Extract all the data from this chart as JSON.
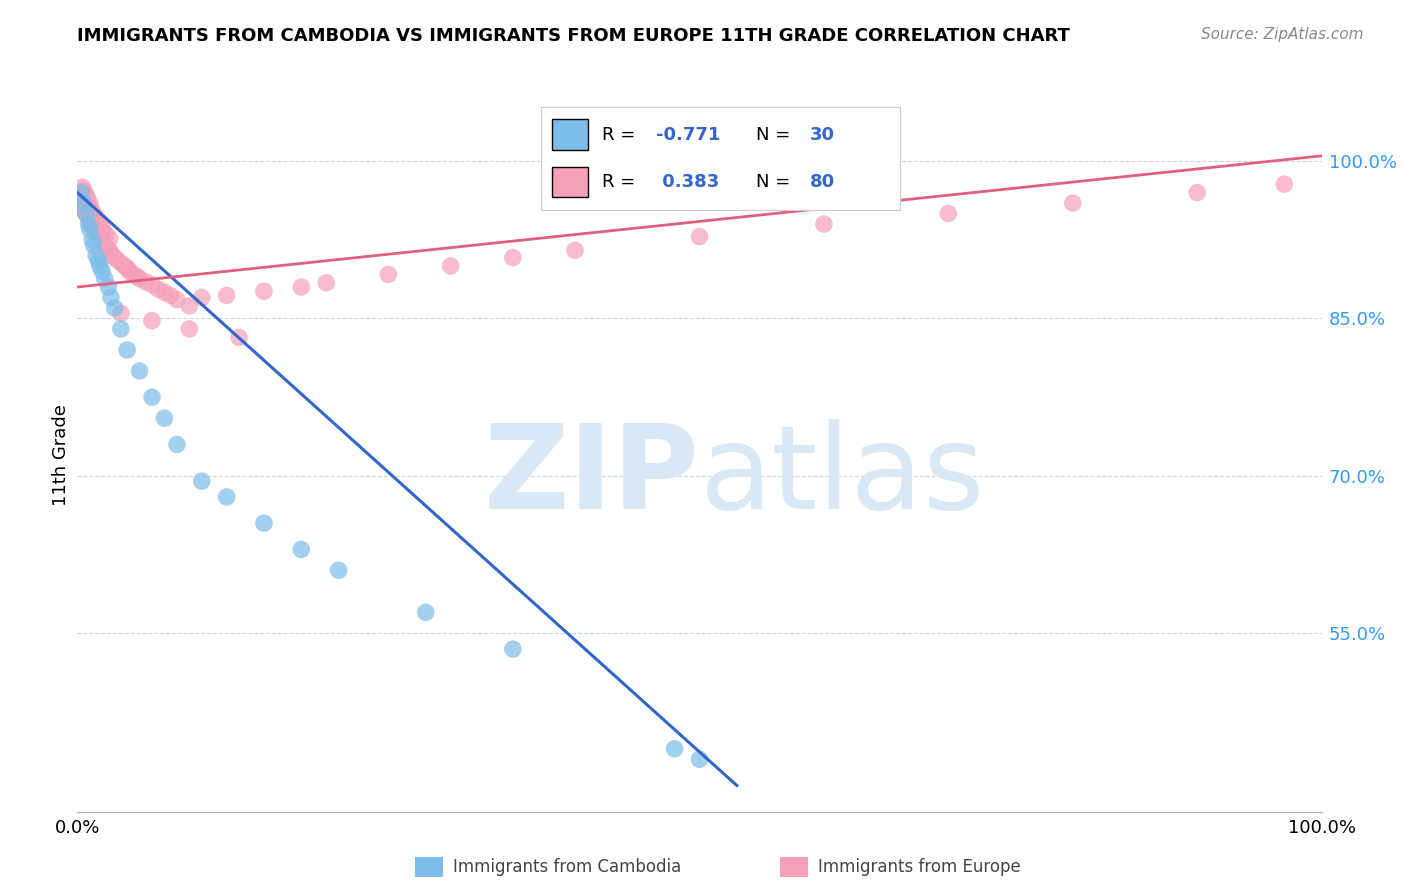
{
  "title": "IMMIGRANTS FROM CAMBODIA VS IMMIGRANTS FROM EUROPE 11TH GRADE CORRELATION CHART",
  "source": "Source: ZipAtlas.com",
  "ylabel": "11th Grade",
  "yticks": [
    0.55,
    0.7,
    0.85,
    1.0
  ],
  "ytick_labels": [
    "55.0%",
    "70.0%",
    "85.0%",
    "100.0%"
  ],
  "xtick_labels": [
    "0.0%",
    "100.0%"
  ],
  "xlim": [
    0.0,
    1.0
  ],
  "ylim": [
    0.38,
    1.06
  ],
  "legend_cambodia": "Immigrants from Cambodia",
  "legend_europe": "Immigrants from Europe",
  "R_cambodia": -0.771,
  "N_cambodia": 30,
  "R_europe": 0.383,
  "N_europe": 80,
  "color_cambodia": "#7BBDE8",
  "color_europe": "#F5A0B8",
  "color_cambodia_line": "#3366CC",
  "color_europe_line": "#E06080",
  "watermark_color": "#D8E8F5",
  "grid_color": "#C8D8E8",
  "cambodia_x": [
    0.003,
    0.005,
    0.007,
    0.009,
    0.01,
    0.012,
    0.013,
    0.015,
    0.017,
    0.018,
    0.02,
    0.022,
    0.025,
    0.027,
    0.03,
    0.035,
    0.04,
    0.05,
    0.06,
    0.07,
    0.08,
    0.1,
    0.12,
    0.15,
    0.18,
    0.21,
    0.28,
    0.35,
    0.48,
    0.5
  ],
  "cambodia_y": [
    0.97,
    0.96,
    0.95,
    0.94,
    0.935,
    0.925,
    0.92,
    0.91,
    0.905,
    0.9,
    0.895,
    0.888,
    0.88,
    0.87,
    0.86,
    0.84,
    0.82,
    0.8,
    0.775,
    0.755,
    0.73,
    0.695,
    0.68,
    0.655,
    0.63,
    0.61,
    0.57,
    0.535,
    0.44,
    0.43
  ],
  "europe_x": [
    0.003,
    0.004,
    0.005,
    0.006,
    0.007,
    0.008,
    0.009,
    0.01,
    0.011,
    0.012,
    0.013,
    0.014,
    0.015,
    0.016,
    0.017,
    0.018,
    0.019,
    0.02,
    0.021,
    0.022,
    0.023,
    0.025,
    0.027,
    0.028,
    0.03,
    0.032,
    0.035,
    0.038,
    0.04,
    0.042,
    0.045,
    0.048,
    0.05,
    0.055,
    0.06,
    0.065,
    0.07,
    0.075,
    0.08,
    0.09,
    0.004,
    0.005,
    0.006,
    0.007,
    0.008,
    0.009,
    0.01,
    0.011,
    0.012,
    0.014,
    0.015,
    0.017,
    0.019,
    0.021,
    0.023,
    0.026,
    0.004,
    0.005,
    0.007,
    0.008,
    0.01,
    0.1,
    0.12,
    0.15,
    0.18,
    0.2,
    0.25,
    0.3,
    0.35,
    0.4,
    0.5,
    0.6,
    0.7,
    0.8,
    0.9,
    0.97,
    0.035,
    0.06,
    0.09,
    0.13
  ],
  "europe_y": [
    0.96,
    0.958,
    0.955,
    0.952,
    0.95,
    0.948,
    0.946,
    0.944,
    0.942,
    0.94,
    0.938,
    0.936,
    0.934,
    0.932,
    0.93,
    0.928,
    0.926,
    0.924,
    0.922,
    0.92,
    0.918,
    0.916,
    0.913,
    0.91,
    0.908,
    0.906,
    0.903,
    0.9,
    0.898,
    0.895,
    0.892,
    0.89,
    0.888,
    0.885,
    0.882,
    0.878,
    0.875,
    0.872,
    0.868,
    0.862,
    0.97,
    0.968,
    0.965,
    0.963,
    0.96,
    0.958,
    0.956,
    0.954,
    0.952,
    0.948,
    0.946,
    0.942,
    0.938,
    0.934,
    0.93,
    0.926,
    0.975,
    0.972,
    0.968,
    0.965,
    0.96,
    0.87,
    0.872,
    0.876,
    0.88,
    0.884,
    0.892,
    0.9,
    0.908,
    0.915,
    0.928,
    0.94,
    0.95,
    0.96,
    0.97,
    0.978,
    0.855,
    0.848,
    0.84,
    0.832
  ],
  "europe_line_x0": 0.0,
  "europe_line_y0": 0.88,
  "europe_line_x1": 1.0,
  "europe_line_y1": 1.005,
  "cambodia_line_x0": 0.0,
  "cambodia_line_y0": 0.97,
  "cambodia_line_x1": 0.53,
  "cambodia_line_y1": 0.405
}
